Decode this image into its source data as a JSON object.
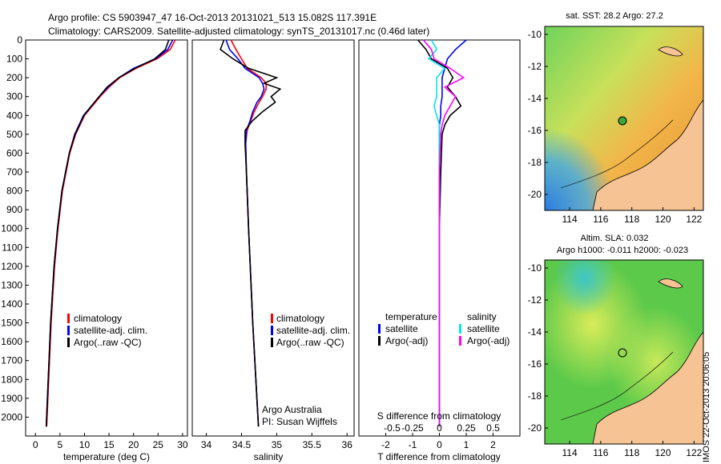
{
  "header": {
    "line1": "Argo profile: CS 5903947_47 16-Oct-2013 20131021_513 15.082S 117.391E",
    "line2": "Climatology: CARS2009. Satellite-adjusted climatology: synTS_20131017.nc (0.46d later)"
  },
  "colors": {
    "climatology": "#ff0000",
    "satellite": "#0000ff",
    "argo": "#000000",
    "t_satellite": "#0000ff",
    "s_satellite": "#00e5ee",
    "s_argo": "#ff00ff",
    "land": "#f5c394"
  },
  "chart_data": [
    {
      "type": "line",
      "id": "temperature",
      "xlabel": "temperature (deg C)",
      "ylabel": "",
      "xlim": [
        -2,
        31
      ],
      "ylim": [
        2100,
        0
      ],
      "xticks": [
        0,
        5,
        10,
        15,
        20,
        25,
        30
      ],
      "yticks": [
        0,
        100,
        200,
        300,
        400,
        500,
        600,
        700,
        800,
        900,
        1000,
        1100,
        1200,
        1300,
        1400,
        1500,
        1600,
        1700,
        1800,
        1900,
        2000
      ],
      "depth": [
        0,
        50,
        100,
        150,
        200,
        250,
        300,
        400,
        500,
        600,
        800,
        1000,
        1200,
        1500,
        1800,
        2050
      ],
      "series": [
        {
          "name": "climatology",
          "values": [
            28.5,
            27.5,
            24.8,
            20.5,
            17.2,
            15.0,
            13.2,
            10.0,
            8.2,
            7.0,
            5.5,
            4.6,
            3.9,
            3.2,
            2.7,
            2.3
          ]
        },
        {
          "name": "satellite-adj. clim.",
          "values": [
            28.0,
            27.0,
            24.5,
            20.0,
            17.0,
            14.8,
            13.0,
            9.8,
            8.0,
            6.9,
            5.4,
            4.5,
            3.8,
            3.1,
            2.6,
            2.2
          ]
        },
        {
          "name": "Argo(..raw -QC)",
          "values": [
            27.2,
            26.5,
            24.3,
            20.3,
            17.0,
            14.6,
            13.0,
            9.9,
            8.1,
            6.9,
            5.4,
            4.5,
            3.8,
            3.1,
            2.6,
            2.2
          ]
        }
      ],
      "legend": [
        "climatology",
        "satellite-adj. clim.",
        "Argo(..raw -QC)"
      ]
    },
    {
      "type": "line",
      "id": "salinity",
      "xlabel": "salinity",
      "xlim": [
        33.8,
        36.1
      ],
      "ylim": [
        2100,
        0
      ],
      "xticks": [
        34,
        34.5,
        35,
        35.5,
        36
      ],
      "depth": [
        0,
        50,
        100,
        150,
        200,
        230,
        260,
        300,
        330,
        380,
        430,
        480,
        550,
        700,
        1000,
        1500,
        2050
      ],
      "series": [
        {
          "name": "climatology",
          "values": [
            34.35,
            34.42,
            34.5,
            34.58,
            34.78,
            34.85,
            34.85,
            34.8,
            34.75,
            34.68,
            34.63,
            34.58,
            34.56,
            34.57,
            34.6,
            34.66,
            34.74
          ]
        },
        {
          "name": "satellite-adj. clim.",
          "values": [
            34.28,
            34.33,
            34.45,
            34.55,
            34.75,
            34.8,
            34.82,
            34.78,
            34.72,
            34.66,
            34.62,
            34.57,
            34.56,
            34.57,
            34.6,
            34.66,
            34.74
          ]
        },
        {
          "name": "Argo(..raw -QC)",
          "values": [
            34.25,
            34.2,
            34.38,
            34.6,
            35.0,
            34.82,
            35.05,
            34.92,
            34.98,
            34.8,
            34.65,
            34.55,
            34.55,
            34.57,
            34.6,
            34.66,
            34.74
          ]
        }
      ],
      "legend": [
        "climatology",
        "satellite-adj. clim.",
        "Argo(..raw -QC)"
      ],
      "annotations": [
        "Argo Australia",
        "PI: Susan Wijffels"
      ]
    },
    {
      "type": "line",
      "id": "differences",
      "xlabel": "T difference from climatology",
      "xlabel_top": "S difference from climatology",
      "xlim": [
        -3,
        3
      ],
      "ylim": [
        2100,
        0
      ],
      "xticks": [
        -2,
        -1,
        0,
        1,
        2
      ],
      "xticks_s": [
        "-0.5",
        "-0.25",
        "0",
        "0.25",
        "0.5"
      ],
      "depth": [
        0,
        50,
        100,
        150,
        200,
        250,
        300,
        350,
        400,
        450,
        500,
        700,
        1000,
        1500,
        2050
      ],
      "series": [
        {
          "name": "temperature satellite",
          "values": [
            1.0,
            0.6,
            0.3,
            0.2,
            0.1,
            0.1,
            0.1,
            0.05,
            0.05,
            0.0,
            0.0,
            0.0,
            0.0,
            0.0,
            0.0
          ]
        },
        {
          "name": "temperature Argo(-adj)",
          "values": [
            -0.8,
            -0.5,
            -0.3,
            0.3,
            0.5,
            0.3,
            0.6,
            0.8,
            0.4,
            0.2,
            0.1,
            0.05,
            0.0,
            0.0,
            0.0
          ]
        },
        {
          "name": "salinity satellite",
          "values": [
            -0.3,
            -0.1,
            -0.4,
            0.2,
            -0.1,
            -0.1,
            -0.1,
            -0.2,
            -0.1,
            0.0,
            0.0,
            0.0,
            0.0,
            0.0,
            0.0
          ]
        },
        {
          "name": "salinity Argo(-adj)",
          "values": [
            -0.6,
            -0.3,
            -0.2,
            0.4,
            0.9,
            0.2,
            0.6,
            0.4,
            0.2,
            0.1,
            0.05,
            0.0,
            0.0,
            0.0,
            0.0
          ]
        }
      ],
      "legend_headers": [
        "temperature",
        "salinity"
      ],
      "legend": [
        "satellite",
        "Argo(-adj)",
        "satellite",
        "Argo(-adj)"
      ]
    },
    {
      "type": "heatmap",
      "id": "sst_map",
      "title": "sat. SST: 28.2 Argo: 27.2",
      "xlim": [
        112.4,
        122.6
      ],
      "ylim": [
        -21,
        -9.5
      ],
      "xticks": [
        114,
        116,
        118,
        120,
        122
      ],
      "yticks": [
        -10,
        -12,
        -14,
        -16,
        -18,
        -20
      ],
      "float_position": [
        117.391,
        -15.082
      ]
    },
    {
      "type": "heatmap",
      "id": "sla_map",
      "title": "Altim. SLA: 0.032",
      "subtitle": "Argo h1000: -0.011 h2000: -0.023",
      "xlim": [
        112.4,
        122.6
      ],
      "ylim": [
        -21,
        -9.5
      ],
      "xticks": [
        114,
        116,
        118,
        120,
        122
      ],
      "yticks": [
        -10,
        -12,
        -14,
        -16,
        -18,
        -20
      ],
      "float_position": [
        117.391,
        -15.082
      ]
    }
  ],
  "footer": {
    "stamp": "IMOS 22-Oct-2013 20:06:05"
  }
}
